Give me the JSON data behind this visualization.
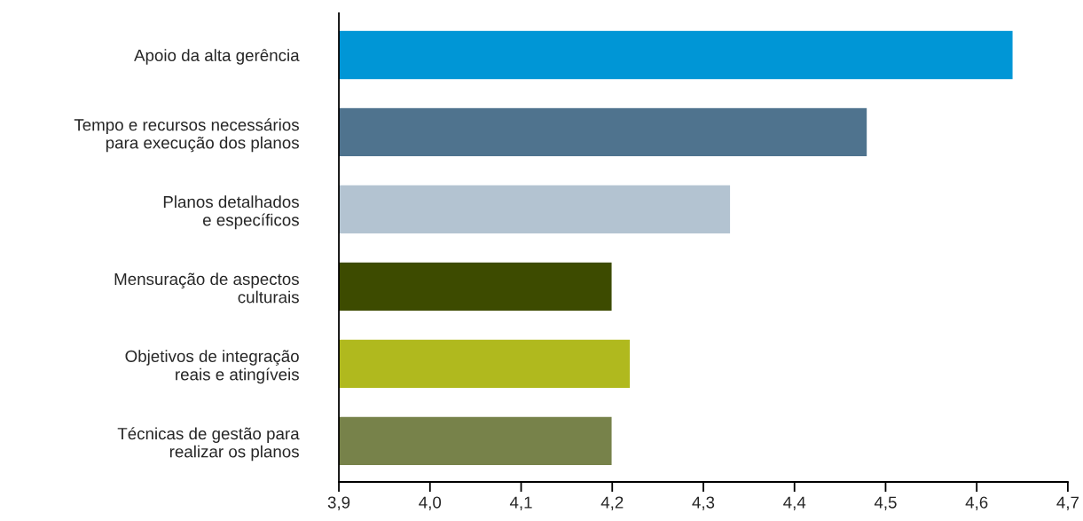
{
  "chart_data": {
    "type": "bar",
    "orientation": "horizontal",
    "categories": [
      "Apoio da alta gerência",
      "Tempo e recursos necessários\npara execução dos planos",
      "Planos detalhados\ne específicos",
      "Mensuração de aspectos\nculturais",
      "Objetivos de integração\nreais e atingíveis",
      "Técnicas de gestão para\nrealizar os planos"
    ],
    "values": [
      4.64,
      4.48,
      4.33,
      4.2,
      4.22,
      4.2
    ],
    "colors": [
      "#0096d6",
      "#4f738e",
      "#b3c3d1",
      "#3d4b00",
      "#b0b91e",
      "#77824a"
    ],
    "xlim": [
      3.9,
      4.7
    ],
    "xticks": [
      {
        "value": 3.9,
        "label": "3,9"
      },
      {
        "value": 4.0,
        "label": "4,0"
      },
      {
        "value": 4.1,
        "label": "4,1"
      },
      {
        "value": 4.2,
        "label": "4,2"
      },
      {
        "value": 4.3,
        "label": "4,3"
      },
      {
        "value": 4.4,
        "label": "4,4"
      },
      {
        "value": 4.5,
        "label": "4,5"
      },
      {
        "value": 4.6,
        "label": "4,6"
      },
      {
        "value": 4.7,
        "label": "4,7"
      }
    ],
    "grid": false,
    "legend": false
  }
}
